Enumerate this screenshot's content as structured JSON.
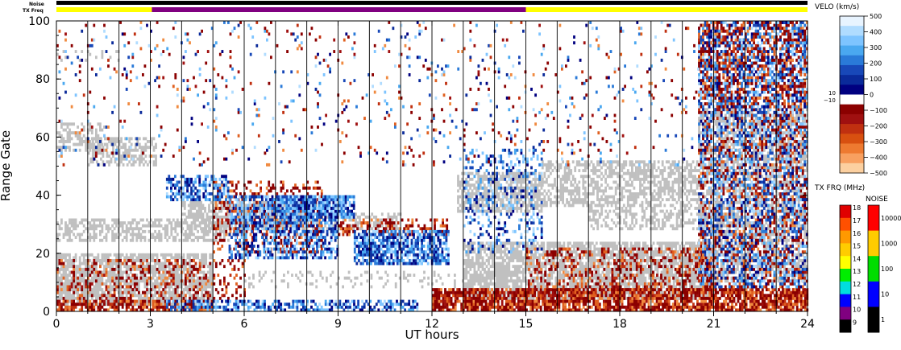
{
  "chart_data": {
    "type": "heatmap",
    "ylabel": "Range Gate",
    "xlabel": "UT hours",
    "x_ticks": [
      0,
      3,
      6,
      9,
      12,
      15,
      18,
      21,
      24
    ],
    "y_ticks": [
      0,
      20,
      40,
      60,
      80,
      100
    ],
    "xlim": [
      0,
      24
    ],
    "ylim": [
      0,
      100
    ],
    "top_bars": {
      "noise_label": "Noise",
      "txfreq_label": "TX Freq",
      "txfreq_segments": [
        {
          "start": 0,
          "end": 3.05,
          "freq_mhz": 14.5,
          "color": "#ffff00"
        },
        {
          "start": 3.05,
          "end": 15.0,
          "freq_mhz": 10.0,
          "color": "#800080"
        },
        {
          "start": 15.0,
          "end": 24,
          "freq_mhz": 14.5,
          "color": "#ffff00"
        }
      ]
    },
    "velocity_colorbar": {
      "title": "VELO (km/s)",
      "ticks": [
        "500",
        "400",
        "300",
        "200",
        "100",
        "0",
        "−100",
        "−200",
        "−300",
        "−400",
        "−500"
      ],
      "side_ticks": [
        "10",
        "−10"
      ],
      "colors": [
        "#e8f4ff",
        "#b0dcff",
        "#7ec4ff",
        "#4aa8f0",
        "#2a7ad8",
        "#1848b8",
        "#0a2a9a",
        "#000080",
        "#ffffff",
        "#8b0000",
        "#a01010",
        "#c03010",
        "#d85010",
        "#ee7a30",
        "#f8a060",
        "#fcd0a0"
      ]
    },
    "txfreq_colorbar": {
      "title": "TX FRQ (MHz)",
      "ticks": [
        "18",
        "17",
        "16",
        "15",
        "14",
        "13",
        "12",
        "11",
        "10",
        "9"
      ],
      "colors": [
        "#e00000",
        "#ff5000",
        "#ff9900",
        "#ffcc00",
        "#ffff00",
        "#00ee00",
        "#00dddd",
        "#0000ff",
        "#800080",
        "#000000"
      ]
    },
    "noise_colorbar": {
      "title": "NOISE",
      "ticks": [
        "10000",
        "1000",
        "100",
        "10",
        "1"
      ],
      "colors": [
        "#ff0000",
        "#ffcc00",
        "#00dd00",
        "#0000ff",
        "#000000"
      ]
    },
    "ground_scatter_color": "#c0c0c0",
    "regions": [
      {
        "desc": "ground-scatter",
        "t0": 0.0,
        "t1": 1.5,
        "g0": 55,
        "g1": 65,
        "kind": "gs",
        "density": 0.5
      },
      {
        "desc": "ground-scatter",
        "t0": 1.0,
        "t1": 3.2,
        "g0": 50,
        "g1": 60,
        "kind": "gs",
        "density": 0.55
      },
      {
        "desc": "ground-scatter",
        "t0": 0.0,
        "t1": 2.0,
        "g0": 86,
        "g1": 90,
        "kind": "gs",
        "density": 0.2
      },
      {
        "desc": "ground-scatter",
        "t0": 0.0,
        "t1": 5.0,
        "g0": 2,
        "g1": 20,
        "kind": "gs",
        "density": 0.75
      },
      {
        "desc": "ground-scatter",
        "t0": 0.0,
        "t1": 5.5,
        "g0": 24,
        "g1": 32,
        "kind": "gs",
        "density": 0.6
      },
      {
        "desc": "ground-scatter",
        "t0": 4.0,
        "t1": 8.0,
        "g0": 28,
        "g1": 38,
        "kind": "gs",
        "density": 0.6
      },
      {
        "desc": "ground-scatter",
        "t0": 5.5,
        "t1": 11.0,
        "g0": 28,
        "g1": 34,
        "kind": "gs",
        "density": 0.4
      },
      {
        "desc": "ground-scatter",
        "t0": 6.0,
        "t1": 13.0,
        "g0": 8,
        "g1": 14,
        "kind": "gs",
        "density": 0.15
      },
      {
        "desc": "ground-scatter",
        "t0": 12.8,
        "t1": 15.5,
        "g0": 34,
        "g1": 48,
        "kind": "gs",
        "density": 0.7
      },
      {
        "desc": "ground-scatter",
        "t0": 13.0,
        "t1": 21.0,
        "g0": 4,
        "g1": 24,
        "kind": "gs",
        "density": 0.75
      },
      {
        "desc": "ground-scatter",
        "t0": 15.5,
        "t1": 20.5,
        "g0": 36,
        "g1": 52,
        "kind": "gs",
        "density": 0.55
      },
      {
        "desc": "ground-scatter",
        "t0": 17.0,
        "t1": 21.0,
        "g0": 28,
        "g1": 36,
        "kind": "gs",
        "density": 0.45
      },
      {
        "desc": "ground-scatter",
        "t0": 20.5,
        "t1": 24,
        "g0": 10,
        "g1": 70,
        "kind": "gs",
        "density": 0.55
      },
      {
        "desc": "negative-velocity",
        "t0": 0.0,
        "t1": 5.0,
        "g0": 0,
        "g1": 4,
        "kind": "neg",
        "density": 0.7
      },
      {
        "desc": "negative-velocity",
        "t0": 0.0,
        "t1": 6.0,
        "g0": 4,
        "g1": 18,
        "kind": "neg",
        "density": 0.25
      },
      {
        "desc": "negative-velocity",
        "t0": 5.0,
        "t1": 8.5,
        "g0": 20,
        "g1": 45,
        "kind": "neg",
        "density": 0.3
      },
      {
        "desc": "negative-velocity",
        "t0": 9.0,
        "t1": 12.5,
        "g0": 26,
        "g1": 32,
        "kind": "neg",
        "density": 0.35
      },
      {
        "desc": "negative-velocity",
        "t0": 12.0,
        "t1": 24,
        "g0": 0,
        "g1": 8,
        "kind": "neg",
        "density": 0.8
      },
      {
        "desc": "negative-velocity",
        "t0": 15.0,
        "t1": 21.0,
        "g0": 8,
        "g1": 22,
        "kind": "neg",
        "density": 0.3
      },
      {
        "desc": "negative-velocity",
        "t0": 20.5,
        "t1": 24,
        "g0": 8,
        "g1": 100,
        "kind": "neg",
        "density": 0.3
      },
      {
        "desc": "positive-velocity",
        "t0": 3.5,
        "t1": 5.5,
        "g0": 38,
        "g1": 47,
        "kind": "pos",
        "density": 0.55
      },
      {
        "desc": "positive-velocity",
        "t0": 5.5,
        "t1": 9.0,
        "g0": 18,
        "g1": 40,
        "kind": "pos",
        "density": 0.55
      },
      {
        "desc": "positive-velocity",
        "t0": 7.0,
        "t1": 9.5,
        "g0": 32,
        "g1": 40,
        "kind": "pos",
        "density": 0.8
      },
      {
        "desc": "positive-velocity",
        "t0": 9.5,
        "t1": 12.5,
        "g0": 16,
        "g1": 28,
        "kind": "pos",
        "density": 0.75
      },
      {
        "desc": "positive-velocity",
        "t0": 3.5,
        "t1": 11.5,
        "g0": 0,
        "g1": 4,
        "kind": "pos",
        "density": 0.55
      },
      {
        "desc": "positive-velocity",
        "t0": 13.0,
        "t1": 15.5,
        "g0": 20,
        "g1": 56,
        "kind": "pos",
        "density": 0.25
      },
      {
        "desc": "positive-velocity",
        "t0": 20.5,
        "t1": 24,
        "g0": 8,
        "g1": 100,
        "kind": "pos",
        "density": 0.3
      },
      {
        "desc": "sparse-noise",
        "t0": 0.0,
        "t1": 20.5,
        "g0": 50,
        "g1": 100,
        "kind": "mix",
        "density": 0.05
      },
      {
        "desc": "sparse-noise",
        "t0": 20.5,
        "t1": 24,
        "g0": 70,
        "g1": 100,
        "kind": "mix",
        "density": 0.45
      }
    ]
  }
}
